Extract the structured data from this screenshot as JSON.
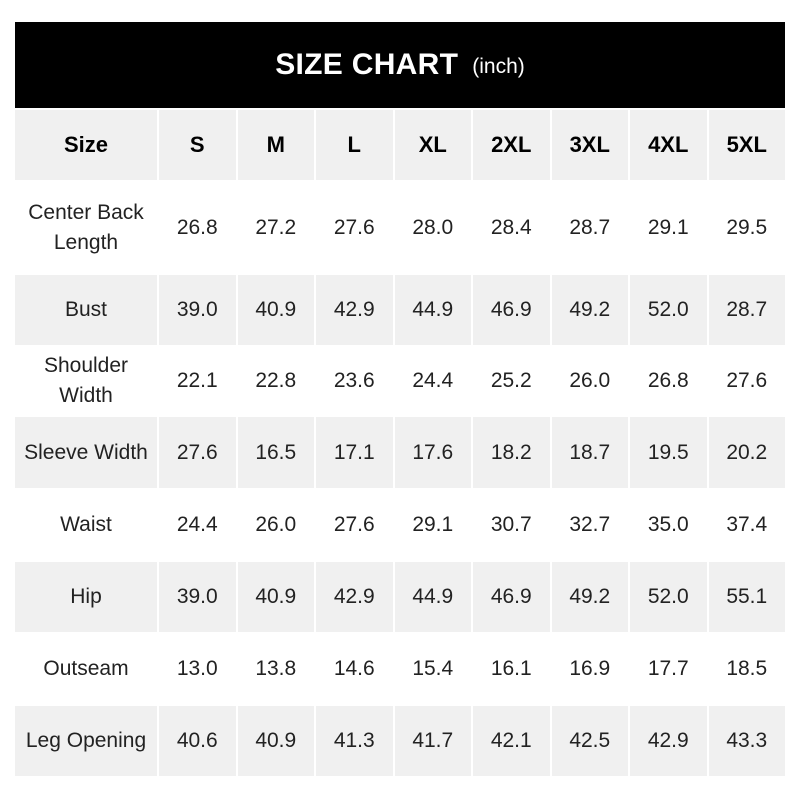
{
  "title": {
    "main": "SIZE CHART",
    "unit": "(inch)"
  },
  "table": {
    "header": [
      "Size",
      "S",
      "M",
      "L",
      "XL",
      "2XL",
      "3XL",
      "4XL",
      "5XL"
    ],
    "rows": [
      {
        "label": "Center Back Length",
        "values": [
          "26.8",
          "27.2",
          "27.6",
          "28.0",
          "28.4",
          "28.7",
          "29.1",
          "29.5"
        ]
      },
      {
        "label": "Bust",
        "values": [
          "39.0",
          "40.9",
          "42.9",
          "44.9",
          "46.9",
          "49.2",
          "52.0",
          "28.7"
        ]
      },
      {
        "label": "Shoulder Width",
        "values": [
          "22.1",
          "22.8",
          "23.6",
          "24.4",
          "25.2",
          "26.0",
          "26.8",
          "27.6"
        ]
      },
      {
        "label": "Sleeve Width",
        "values": [
          "27.6",
          "16.5",
          "17.1",
          "17.6",
          "18.2",
          "18.7",
          "19.5",
          "20.2"
        ]
      },
      {
        "label": "Waist",
        "values": [
          "24.4",
          "26.0",
          "27.6",
          "29.1",
          "30.7",
          "32.7",
          "35.0",
          "37.4"
        ]
      },
      {
        "label": "Hip",
        "values": [
          "39.0",
          "40.9",
          "42.9",
          "44.9",
          "46.9",
          "49.2",
          "52.0",
          "55.1"
        ]
      },
      {
        "label": "Outseam",
        "values": [
          "13.0",
          "13.8",
          "14.6",
          "15.4",
          "16.1",
          "16.9",
          "17.7",
          "18.5"
        ]
      },
      {
        "label": "Leg Opening",
        "values": [
          "40.6",
          "40.9",
          "41.3",
          "41.7",
          "42.1",
          "42.5",
          "42.9",
          "43.3"
        ]
      }
    ]
  },
  "colors": {
    "title_bg": "#000000",
    "stripe": "#f0f0f0"
  }
}
